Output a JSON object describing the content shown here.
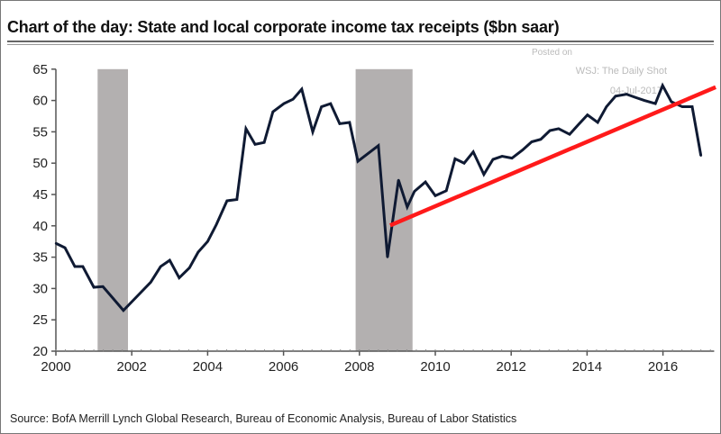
{
  "chart_data": {
    "type": "line",
    "title": "Chart of the day: State and local corporate income tax receipts ($bn saar)",
    "xlabel": "",
    "ylabel": "",
    "xlim": [
      2000,
      2017.35
    ],
    "ylim": [
      20,
      65
    ],
    "x_ticks": [
      "2000",
      "2002",
      "2004",
      "2006",
      "2008",
      "2010",
      "2012",
      "2014",
      "2016"
    ],
    "y_ticks": [
      "20",
      "25",
      "30",
      "35",
      "40",
      "45",
      "50",
      "55",
      "60",
      "65"
    ],
    "grid": false,
    "recessions": [
      [
        2001.1,
        2001.9
      ],
      [
        2007.9,
        2009.4
      ]
    ],
    "series": [
      {
        "name": "State and local corporate income tax receipts",
        "color": "#0f1a33",
        "x": [
          2000.0,
          2000.24,
          2000.5,
          2000.71,
          2001.0,
          2001.24,
          2001.78,
          2002.26,
          2002.5,
          2002.76,
          2003.0,
          2003.25,
          2003.52,
          2003.75,
          2004.0,
          2004.23,
          2004.51,
          2004.77,
          2005.01,
          2005.25,
          2005.49,
          2005.72,
          2006.01,
          2006.25,
          2006.48,
          2006.77,
          2007.0,
          2007.24,
          2007.48,
          2007.74,
          2007.96,
          2008.5,
          2008.74,
          2009.03,
          2009.26,
          2009.45,
          2009.74,
          2010.0,
          2010.29,
          2010.52,
          2010.76,
          2011.0,
          2011.28,
          2011.52,
          2011.76,
          2012.02,
          2012.3,
          2012.54,
          2012.78,
          2013.02,
          2013.25,
          2013.54,
          2013.78,
          2014.01,
          2014.28,
          2014.51,
          2014.75,
          2015.04,
          2015.27,
          2015.51,
          2015.8,
          2015.99,
          2016.22,
          2016.51,
          2016.77,
          2017.0
        ],
        "values": [
          37.2,
          36.5,
          33.5,
          33.5,
          30.2,
          30.3,
          26.5,
          29.5,
          31.0,
          33.5,
          34.5,
          31.7,
          33.3,
          35.8,
          37.5,
          40.2,
          44.0,
          44.2,
          55.5,
          53.0,
          53.3,
          58.2,
          59.5,
          60.2,
          61.8,
          55.0,
          59.0,
          59.5,
          56.3,
          56.5,
          50.3,
          52.8,
          35.0,
          47.3,
          43.0,
          45.5,
          47.0,
          44.8,
          45.6,
          50.7,
          50.0,
          51.8,
          48.2,
          50.6,
          51.1,
          50.8,
          52.1,
          53.4,
          53.8,
          55.2,
          55.5,
          54.6,
          56.2,
          57.7,
          56.5,
          59.0,
          60.7,
          61.0,
          60.5,
          60.0,
          59.5,
          62.4,
          59.8,
          59.0,
          59.0,
          51.2
        ]
      },
      {
        "name": "Trend line",
        "color": "#ff1a1a",
        "x": [
          2008.86,
          2017.34
        ],
        "values": [
          40.2,
          62.0
        ]
      }
    ],
    "annotations": [
      "Posted on",
      "WSJ: The Daily Shot",
      "04-Jul-2017"
    ],
    "source": "Source: BofA Merrill Lynch Global Research, Bureau of Economic Analysis, Bureau of Labor Statistics"
  }
}
